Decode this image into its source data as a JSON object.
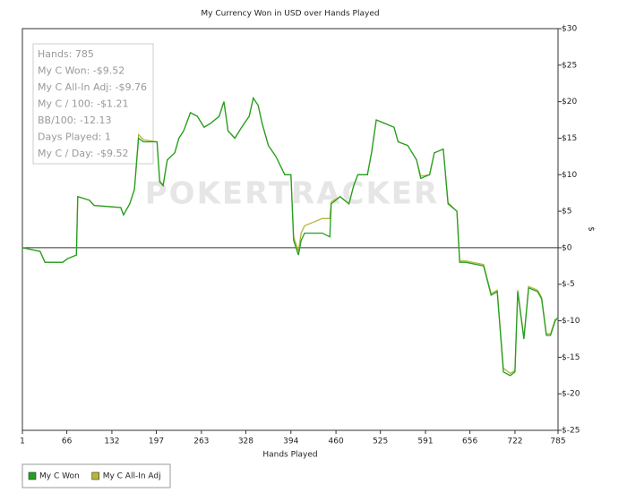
{
  "chart_data": {
    "type": "line",
    "title": "My Currency Won in USD over Hands Played",
    "x_label": "Hands Played",
    "y_label": "$",
    "watermark": "POKERTRACKER",
    "stats": [
      "Hands: 785",
      "My C Won: -$9.52",
      "My C All-In Adj: -$9.76",
      "My C / 100: -$1.21",
      "BB/100: -12.13",
      "Days Played: 1",
      "My C / Day: -$9.52"
    ],
    "x": [
      1,
      27,
      34,
      60,
      67,
      80,
      82,
      99,
      106,
      145,
      149,
      158,
      165,
      171,
      178,
      198,
      202,
      207,
      213,
      224,
      230,
      237,
      247,
      257,
      267,
      276,
      289,
      296,
      302,
      312,
      322,
      333,
      339,
      346,
      352,
      361,
      372,
      385,
      394,
      398,
      405,
      409,
      414,
      427,
      440,
      451,
      453,
      466,
      479,
      486,
      492,
      506,
      512,
      519,
      532,
      545,
      551,
      565,
      578,
      584,
      597,
      604,
      617,
      624,
      637,
      641,
      650,
      676,
      687,
      696,
      705,
      715,
      722,
      726,
      735,
      742,
      755,
      761,
      768,
      774,
      781,
      785
    ],
    "series": [
      {
        "name": "My C Won",
        "color": "#22a022",
        "values": [
          0,
          -0.5,
          -2,
          -2,
          -1.5,
          -1,
          7,
          6.5,
          5.8,
          5.5,
          4.5,
          6,
          8,
          15,
          14.5,
          14.5,
          9,
          8.5,
          12,
          13,
          15,
          16,
          18.5,
          18,
          16.5,
          17,
          18,
          20,
          16,
          15,
          16.5,
          18,
          20.5,
          19.5,
          17,
          14,
          12.5,
          10,
          10,
          1,
          -1,
          1,
          2,
          2,
          2,
          1.5,
          6,
          7,
          6,
          8.5,
          10,
          10,
          13,
          17.5,
          17,
          16.5,
          14.5,
          14,
          12,
          9.5,
          10,
          13,
          13.5,
          6,
          5,
          -2,
          -2,
          -2.5,
          -6.5,
          -6,
          -17,
          -17.5,
          -17,
          -6,
          -12.5,
          -5.5,
          -6,
          -7,
          -12,
          -12,
          -10,
          -9.52
        ]
      },
      {
        "name": "My C All-In Adj",
        "color": "#b5b53a",
        "values": [
          0,
          -0.5,
          -2,
          -2,
          -1.5,
          -1,
          7,
          6.5,
          5.8,
          5.5,
          4.5,
          6,
          8,
          15.5,
          14.8,
          14.5,
          9.2,
          8.5,
          12,
          13,
          15,
          16,
          18.5,
          18,
          16.5,
          17,
          18,
          20,
          16,
          15,
          16.5,
          18,
          20.5,
          19.5,
          17,
          14,
          12.5,
          10,
          10,
          1.5,
          -0.5,
          2,
          3,
          3.5,
          4,
          4,
          6.3,
          7,
          6,
          8.5,
          10,
          10,
          13,
          17.5,
          17,
          16.5,
          14.5,
          14,
          12,
          9.8,
          10,
          13,
          13.5,
          6.2,
          5,
          -1.8,
          -1.8,
          -2.3,
          -6.3,
          -5.8,
          -16.5,
          -17.2,
          -16.8,
          -5.8,
          -12.3,
          -5.3,
          -5.8,
          -6.8,
          -11.8,
          -11.8,
          -9.8,
          -9.76
        ]
      }
    ],
    "xlim": [
      1,
      785
    ],
    "xticks": [
      1,
      66,
      132,
      197,
      263,
      328,
      394,
      460,
      525,
      591,
      656,
      722,
      785
    ],
    "ylim": [
      -25,
      30
    ],
    "yticks": [
      {
        "value": -25,
        "label": "$-25"
      },
      {
        "value": -20,
        "label": "$-20"
      },
      {
        "value": -15,
        "label": "$-15"
      },
      {
        "value": -10,
        "label": "$-10"
      },
      {
        "value": -5,
        "label": "$-5"
      },
      {
        "value": 0,
        "label": "$0"
      },
      {
        "value": 5,
        "label": "$5"
      },
      {
        "value": 10,
        "label": "$10"
      },
      {
        "value": 15,
        "label": "$15"
      },
      {
        "value": 20,
        "label": "$20"
      },
      {
        "value": 25,
        "label": "$25"
      },
      {
        "value": 30,
        "label": "$30"
      }
    ],
    "legend": "bottom-left",
    "grid": false
  }
}
